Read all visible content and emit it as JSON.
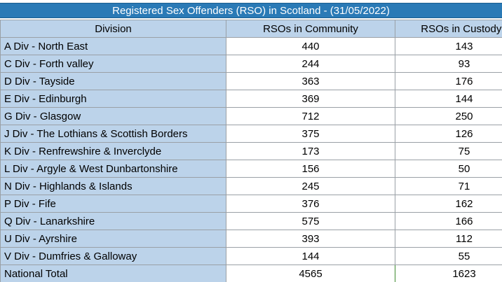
{
  "title": "Registered Sex Offenders (RSO) in Scotland - (31/05/2022)",
  "headers": [
    "Division",
    "RSOs  in Community",
    "RSOs in Custody /"
  ],
  "rows": [
    {
      "division": "A Div - North East",
      "community": "440",
      "custody": "143"
    },
    {
      "division": "C Div - Forth valley",
      "community": "244",
      "custody": "93"
    },
    {
      "division": "D Div - Tayside",
      "community": "363",
      "custody": "176"
    },
    {
      "division": "E Div - Edinburgh",
      "community": "369",
      "custody": "144"
    },
    {
      "division": "G Div - Glasgow",
      "community": "712",
      "custody": "250"
    },
    {
      "division": "J Div - The Lothians & Scottish Borders",
      "community": "375",
      "custody": "126"
    },
    {
      "division": "K Div - Renfrewshire & Inverclyde",
      "community": "173",
      "custody": "75"
    },
    {
      "division": "L Div - Argyle & West Dunbartonshire",
      "community": "156",
      "custody": "50"
    },
    {
      "division": "N Div - Highlands & Islands",
      "community": "245",
      "custody": "71"
    },
    {
      "division": "P Div - Fife",
      "community": "376",
      "custody": "162"
    },
    {
      "division": "Q Div - Lanarkshire",
      "community": "575",
      "custody": "166"
    },
    {
      "division": "U Div - Ayrshire",
      "community": "393",
      "custody": "112"
    },
    {
      "division": "V Div - Dumfries & Galloway",
      "community": "144",
      "custody": "55"
    }
  ],
  "total": {
    "division": "National Total",
    "community": "4565",
    "custody": "1623"
  }
}
